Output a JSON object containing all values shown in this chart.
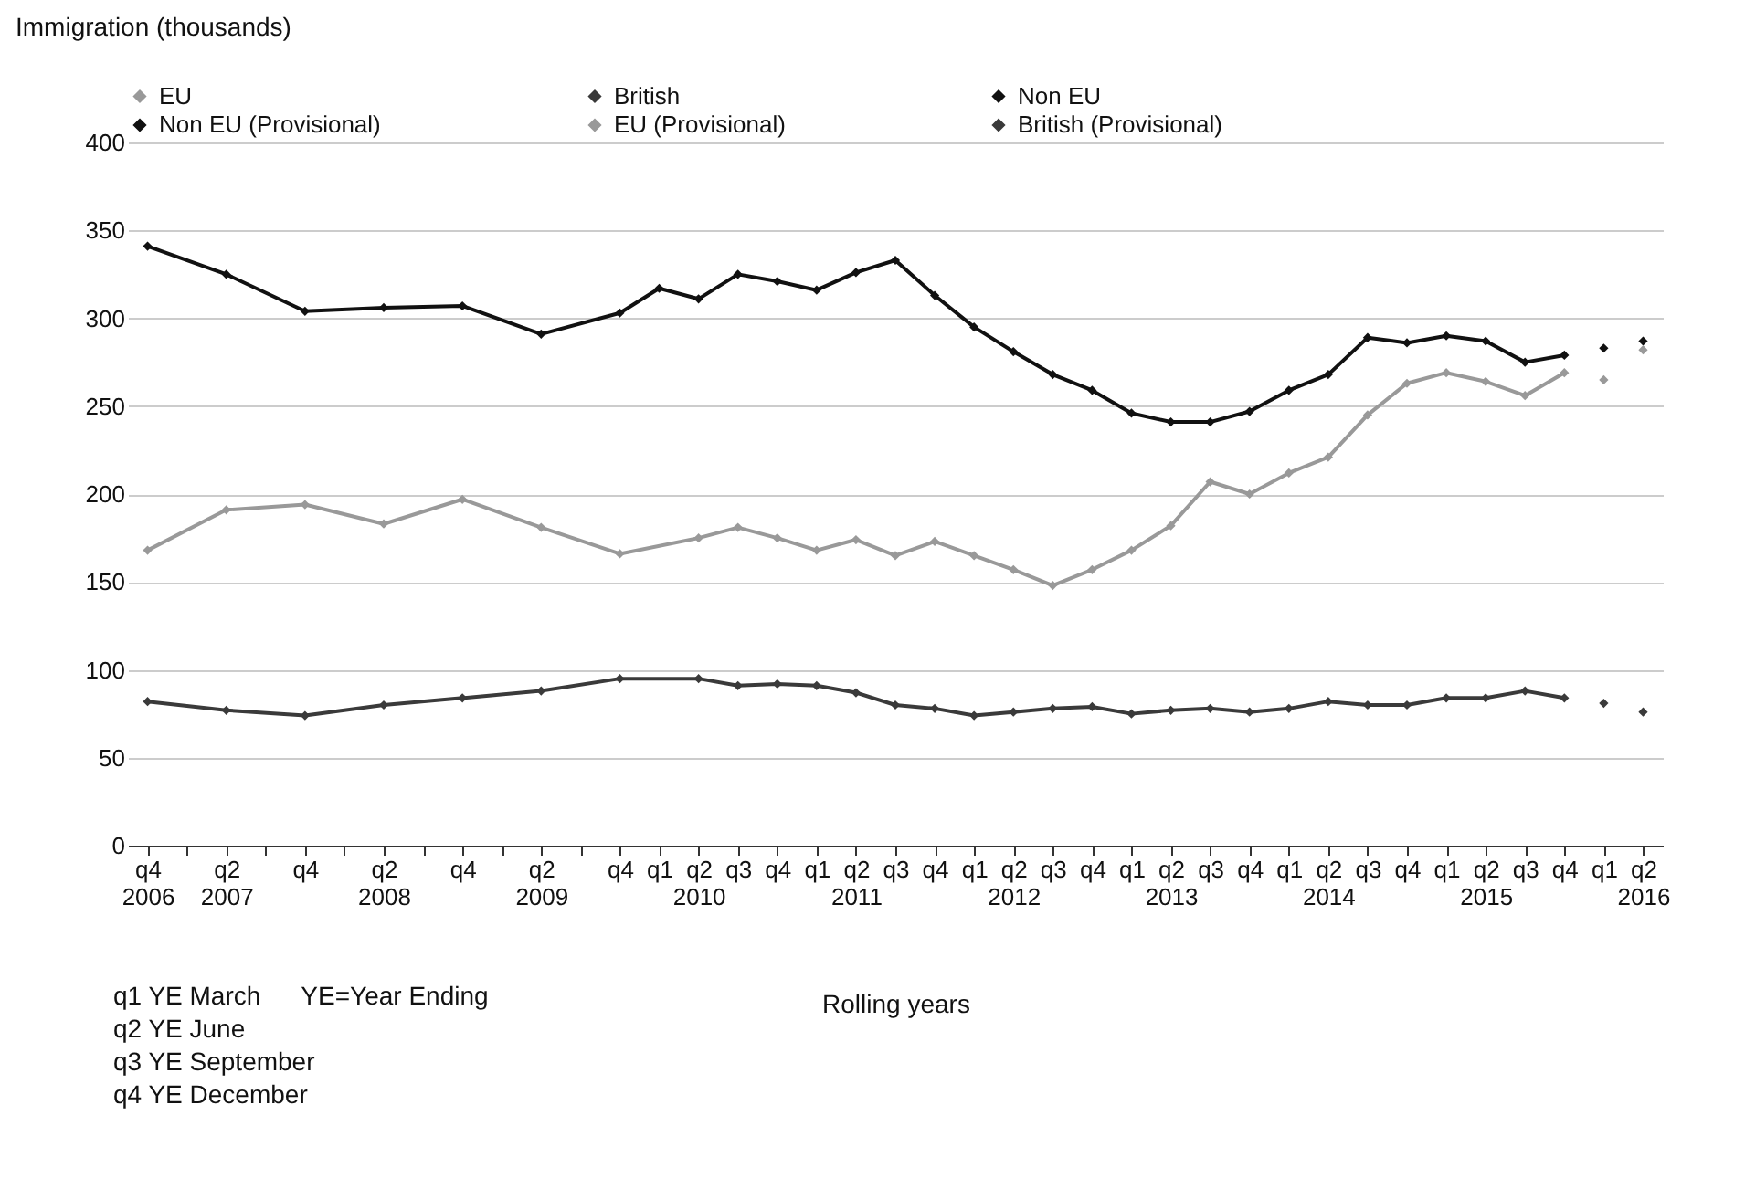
{
  "chart_data": {
    "type": "line",
    "ylabel": "Immigration (thousands)",
    "xlabel": "Rolling years",
    "categories": [
      "q4 2006",
      null,
      "q2 2007",
      null,
      "q4",
      null,
      "q2 2008",
      null,
      "q4",
      null,
      "q2 2009",
      null,
      "q4",
      "q1",
      "q2 2010",
      "q3",
      "q4",
      "q1",
      "q2 2011",
      "q3",
      "q4",
      "q1",
      "q2 2012",
      "q3",
      "q4",
      "q1",
      "q2 2013",
      "q3",
      "q4",
      "q1",
      "q2 2014",
      "q3",
      "q4",
      "q1",
      "q2 2015",
      "q3",
      "q4",
      "q1",
      "q2 2016"
    ],
    "series": [
      {
        "name": "EU",
        "color": "#999999",
        "values": [
          168,
          null,
          191,
          null,
          194,
          null,
          183,
          null,
          197,
          null,
          181,
          null,
          166,
          null,
          175,
          181,
          175,
          168,
          174,
          165,
          173,
          165,
          157,
          148,
          157,
          168,
          182,
          207,
          200,
          212,
          221,
          245,
          263,
          269,
          264,
          256,
          269,
          null,
          null
        ]
      },
      {
        "name": "British",
        "color": "#3a3a3a",
        "values": [
          82,
          null,
          77,
          null,
          74,
          null,
          80,
          null,
          84,
          null,
          88,
          null,
          95,
          null,
          95,
          91,
          92,
          91,
          87,
          80,
          78,
          74,
          76,
          78,
          79,
          75,
          77,
          78,
          76,
          78,
          82,
          80,
          80,
          84,
          84,
          88,
          84,
          null,
          null
        ]
      },
      {
        "name": "Non EU",
        "color": "#111111",
        "values": [
          341,
          null,
          325,
          null,
          304,
          null,
          306,
          null,
          307,
          null,
          291,
          null,
          303,
          317,
          311,
          325,
          321,
          316,
          326,
          333,
          313,
          295,
          281,
          268,
          259,
          246,
          241,
          241,
          247,
          259,
          268,
          289,
          286,
          290,
          287,
          275,
          279,
          null,
          null
        ]
      },
      {
        "name": "Non EU (Provisional)",
        "type": "scatter",
        "color": "#111111",
        "values": [
          null,
          null,
          null,
          null,
          null,
          null,
          null,
          null,
          null,
          null,
          null,
          null,
          null,
          null,
          null,
          null,
          null,
          null,
          null,
          null,
          null,
          null,
          null,
          null,
          null,
          null,
          null,
          null,
          null,
          null,
          null,
          null,
          null,
          null,
          null,
          null,
          null,
          283,
          287
        ]
      },
      {
        "name": "EU (Provisional)",
        "type": "scatter",
        "color": "#999999",
        "values": [
          null,
          null,
          null,
          null,
          null,
          null,
          null,
          null,
          null,
          null,
          null,
          null,
          null,
          null,
          null,
          null,
          null,
          null,
          null,
          null,
          null,
          null,
          null,
          null,
          null,
          null,
          null,
          null,
          null,
          null,
          null,
          null,
          null,
          null,
          null,
          null,
          null,
          265,
          282
        ]
      },
      {
        "name": "British (Provisional)",
        "type": "scatter",
        "color": "#3a3a3a",
        "values": [
          null,
          null,
          null,
          null,
          null,
          null,
          null,
          null,
          null,
          null,
          null,
          null,
          null,
          null,
          null,
          null,
          null,
          null,
          null,
          null,
          null,
          null,
          null,
          null,
          null,
          null,
          null,
          null,
          null,
          null,
          null,
          null,
          null,
          null,
          null,
          null,
          null,
          81,
          76
        ]
      }
    ],
    "ylim": [
      0,
      400
    ],
    "yticks": [
      0,
      50,
      100,
      150,
      200,
      250,
      300,
      350,
      400
    ],
    "grid": "y",
    "legend": "top",
    "marker": "diamond",
    "line_style": "solid",
    "annotations": [
      "q1 YE March",
      "YE=Year Ending",
      "q2 YE June",
      "q3 YE September",
      "q4 YE December"
    ]
  }
}
